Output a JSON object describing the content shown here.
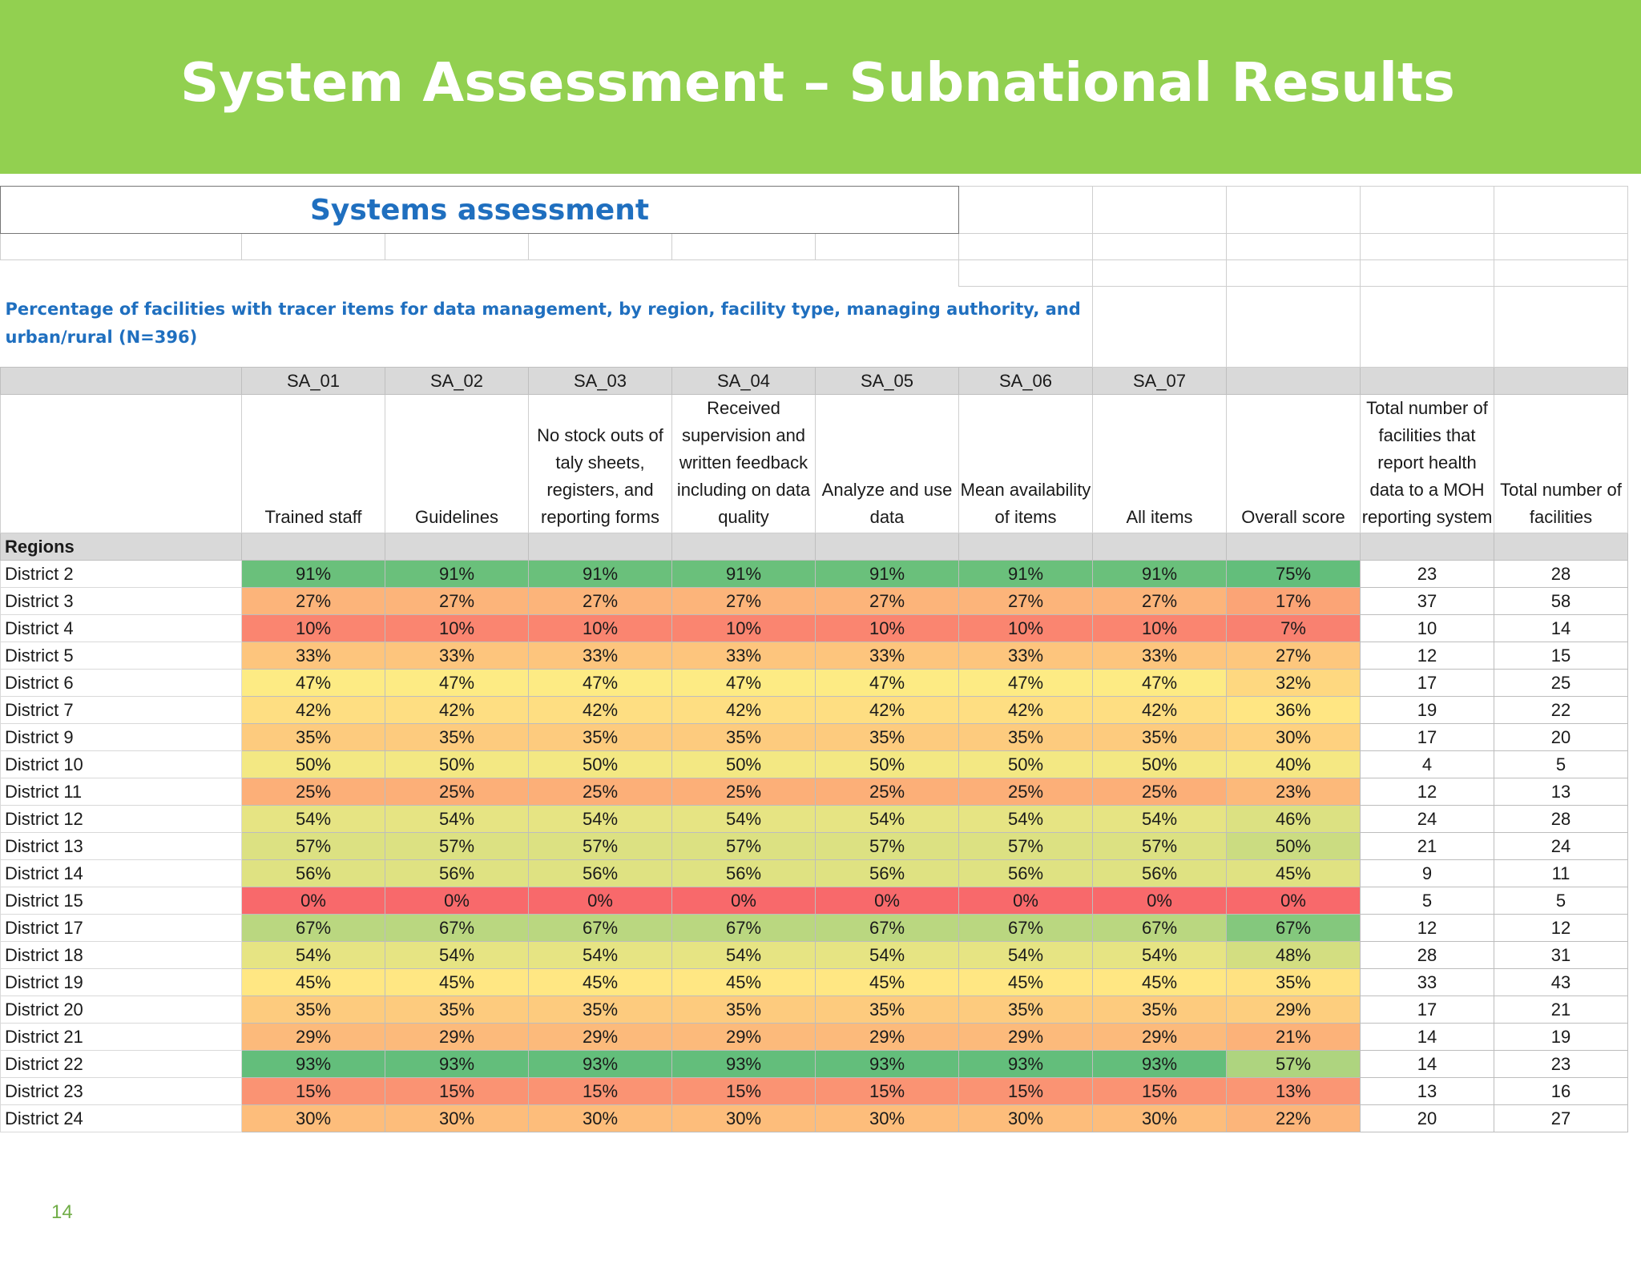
{
  "slide": {
    "title": "System Assessment – Subnational Results",
    "banner_color": "#92d050",
    "page_number": "14",
    "page_number_color": "#70ad47"
  },
  "table": {
    "title": "Systems assessment",
    "caption": "Percentage of facilities with tracer items for data management, by region, facility type, managing authority, and urban/rural (N=396)",
    "codes": [
      "SA_01",
      "SA_02",
      "SA_03",
      "SA_04",
      "SA_05",
      "SA_06",
      "SA_07",
      "",
      "",
      ""
    ],
    "headers": [
      "Trained staff",
      "Guidelines",
      "No stock outs of taly sheets, registers, and reporting forms",
      "Received supervision and written feedback including on data quality",
      "Analyze and use data",
      "Mean availability of items",
      "All items",
      "Overall score",
      "Total number of facilities that report health data to a MOH reporting system",
      "Total number of facilities"
    ],
    "group_label": "Regions",
    "rows": [
      {
        "name": "District 2",
        "values": [
          "91%",
          "91%",
          "91%",
          "91%",
          "91%",
          "91%",
          "91%",
          "75%",
          "23",
          "28"
        ]
      },
      {
        "name": "District 3",
        "values": [
          "27%",
          "27%",
          "27%",
          "27%",
          "27%",
          "27%",
          "27%",
          "17%",
          "37",
          "58"
        ]
      },
      {
        "name": "District 4",
        "values": [
          "10%",
          "10%",
          "10%",
          "10%",
          "10%",
          "10%",
          "10%",
          "7%",
          "10",
          "14"
        ]
      },
      {
        "name": "District 5",
        "values": [
          "33%",
          "33%",
          "33%",
          "33%",
          "33%",
          "33%",
          "33%",
          "27%",
          "12",
          "15"
        ]
      },
      {
        "name": "District 6",
        "values": [
          "47%",
          "47%",
          "47%",
          "47%",
          "47%",
          "47%",
          "47%",
          "32%",
          "17",
          "25"
        ]
      },
      {
        "name": "District 7",
        "values": [
          "42%",
          "42%",
          "42%",
          "42%",
          "42%",
          "42%",
          "42%",
          "36%",
          "19",
          "22"
        ]
      },
      {
        "name": "District 9",
        "values": [
          "35%",
          "35%",
          "35%",
          "35%",
          "35%",
          "35%",
          "35%",
          "30%",
          "17",
          "20"
        ]
      },
      {
        "name": "District 10",
        "values": [
          "50%",
          "50%",
          "50%",
          "50%",
          "50%",
          "50%",
          "50%",
          "40%",
          "4",
          "5"
        ]
      },
      {
        "name": "District 11",
        "values": [
          "25%",
          "25%",
          "25%",
          "25%",
          "25%",
          "25%",
          "25%",
          "23%",
          "12",
          "13"
        ]
      },
      {
        "name": "District 12",
        "values": [
          "54%",
          "54%",
          "54%",
          "54%",
          "54%",
          "54%",
          "54%",
          "46%",
          "24",
          "28"
        ]
      },
      {
        "name": "District 13",
        "values": [
          "57%",
          "57%",
          "57%",
          "57%",
          "57%",
          "57%",
          "57%",
          "50%",
          "21",
          "24"
        ]
      },
      {
        "name": "District 14",
        "values": [
          "56%",
          "56%",
          "56%",
          "56%",
          "56%",
          "56%",
          "56%",
          "45%",
          "9",
          "11"
        ]
      },
      {
        "name": "District 15",
        "values": [
          "0%",
          "0%",
          "0%",
          "0%",
          "0%",
          "0%",
          "0%",
          "0%",
          "5",
          "5"
        ]
      },
      {
        "name": "District 17",
        "values": [
          "67%",
          "67%",
          "67%",
          "67%",
          "67%",
          "67%",
          "67%",
          "67%",
          "12",
          "12"
        ]
      },
      {
        "name": "District 18",
        "values": [
          "54%",
          "54%",
          "54%",
          "54%",
          "54%",
          "54%",
          "54%",
          "48%",
          "28",
          "31"
        ]
      },
      {
        "name": "District 19",
        "values": [
          "45%",
          "45%",
          "45%",
          "45%",
          "45%",
          "45%",
          "45%",
          "35%",
          "33",
          "43"
        ]
      },
      {
        "name": "District 20",
        "values": [
          "35%",
          "35%",
          "35%",
          "35%",
          "35%",
          "35%",
          "35%",
          "29%",
          "17",
          "21"
        ]
      },
      {
        "name": "District 21",
        "values": [
          "29%",
          "29%",
          "29%",
          "29%",
          "29%",
          "29%",
          "29%",
          "21%",
          "14",
          "19"
        ]
      },
      {
        "name": "District 22",
        "values": [
          "93%",
          "93%",
          "93%",
          "93%",
          "93%",
          "93%",
          "93%",
          "57%",
          "14",
          "23"
        ]
      },
      {
        "name": "District 23",
        "values": [
          "15%",
          "15%",
          "15%",
          "15%",
          "15%",
          "15%",
          "15%",
          "13%",
          "13",
          "16"
        ]
      },
      {
        "name": "District 24",
        "values": [
          "30%",
          "30%",
          "30%",
          "30%",
          "30%",
          "30%",
          "30%",
          "22%",
          "20",
          "27"
        ]
      }
    ]
  },
  "heatmap_colors": {
    "low": "#f8696b",
    "mid": "#ffeb84",
    "high": "#63be7b"
  }
}
